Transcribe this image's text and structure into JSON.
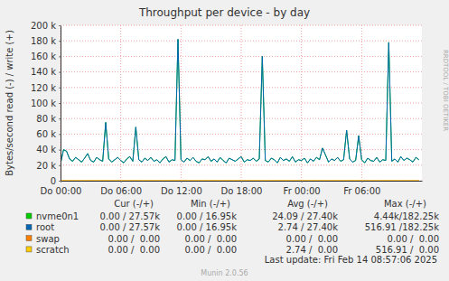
{
  "chart_data": {
    "type": "line",
    "title": "Throughput per device - by day",
    "y_label": "Bytes/second read (-) / write (+)",
    "x": [
      0,
      0.3,
      0.6,
      0.9,
      1.2,
      1.5,
      1.8,
      2.1,
      2.4,
      2.7,
      3,
      3.3,
      3.6,
      3.9,
      4.2,
      4.5,
      4.8,
      5.1,
      5.4,
      5.7,
      6,
      6.3,
      6.6,
      6.9,
      7.2,
      7.5,
      7.8,
      8.1,
      8.4,
      8.7,
      9,
      9.3,
      9.6,
      9.9,
      10.2,
      10.5,
      10.8,
      11.1,
      11.4,
      11.7,
      12,
      12.3,
      12.6,
      12.9,
      13.2,
      13.5,
      13.8,
      14.1,
      14.4,
      14.7,
      15,
      15.3,
      15.6,
      15.9,
      16.2,
      16.5,
      16.8,
      17.1,
      17.4,
      17.7,
      18,
      18.3,
      18.6,
      18.9,
      19.2,
      19.5,
      19.8,
      20.1,
      20.4,
      20.7,
      21,
      21.3,
      21.6,
      21.9,
      22.2,
      22.5,
      22.8,
      23.1,
      23.4,
      23.7,
      24,
      24.3,
      24.6,
      24.9,
      25.2,
      25.5,
      25.8,
      26.1,
      26.4,
      26.7,
      27,
      27.3,
      27.6,
      27.9,
      28.2,
      28.5,
      28.8,
      29.1,
      29.4,
      29.7,
      30,
      30.3,
      30.6,
      30.9,
      31.2,
      31.5,
      31.8,
      32.1,
      32.4,
      32.7,
      33,
      33.3,
      33.6,
      33.9,
      34.2,
      34.5,
      34.8,
      35.1,
      35.4,
      35.7
    ],
    "xlim": [
      0,
      36
    ],
    "xticks": [
      {
        "value": 0,
        "label": "Do 00:00"
      },
      {
        "value": 6,
        "label": "Do 06:00"
      },
      {
        "value": 12,
        "label": "Do 12:00"
      },
      {
        "value": 18,
        "label": "Do 18:00"
      },
      {
        "value": 24,
        "label": "Fr 00:00"
      },
      {
        "value": 30,
        "label": "Fr 06:00"
      }
    ],
    "ylim": [
      0,
      200000
    ],
    "yticks": [
      0,
      {
        "value": 20000,
        "label": "20 k"
      },
      {
        "value": 40000,
        "label": "40 k"
      },
      {
        "value": 60000,
        "label": "60 k"
      },
      {
        "value": 80000,
        "label": "80 k"
      },
      {
        "value": 100000,
        "label": "100 k"
      },
      {
        "value": 120000,
        "label": "120 k"
      },
      {
        "value": 140000,
        "label": "140 k"
      },
      {
        "value": 160000,
        "label": "160 k"
      },
      {
        "value": 180000,
        "label": "180 k"
      },
      {
        "value": 200000,
        "label": "200 k"
      }
    ],
    "grid": true,
    "columns": [
      "Cur (-/+)",
      "Min (-/+)",
      "Avg (-/+)",
      "Max (-/+)"
    ],
    "series": [
      {
        "name": "nvme0n1",
        "color": "#00cc00",
        "cur": "0.00 / 27.57k",
        "min": "0.00 / 16.95k",
        "avg": "24.09 / 27.40k",
        "max": "4.44k/182.25k",
        "values": [
          22000,
          40000,
          38000,
          28000,
          25000,
          30000,
          27000,
          24000,
          29000,
          35000,
          26000,
          24000,
          30000,
          27000,
          25000,
          75000,
          28000,
          24000,
          27000,
          30000,
          26000,
          23000,
          28000,
          31000,
          25000,
          69000,
          27000,
          24000,
          29000,
          26000,
          30000,
          25000,
          27000,
          23000,
          28000,
          31000,
          24000,
          27000,
          26000,
          182000,
          27000,
          24000,
          29000,
          26000,
          30000,
          25000,
          23000,
          28000,
          27000,
          31000,
          25000,
          28000,
          24000,
          30000,
          26000,
          23000,
          29000,
          27000,
          25000,
          28000,
          31000,
          24000,
          27000,
          26000,
          29000,
          25000,
          28000,
          160000,
          26000,
          24000,
          29000,
          27000,
          23000,
          30000,
          26000,
          28000,
          25000,
          31000,
          24000,
          27000,
          26000,
          29000,
          23000,
          28000,
          25000,
          30000,
          27000,
          42000,
          33000,
          24000,
          28000,
          26000,
          30000,
          25000,
          27000,
          65000,
          28000,
          24000,
          26000,
          58000,
          27000,
          23000,
          29000,
          26000,
          25000,
          30000,
          24000,
          27000,
          26000,
          178000,
          25000,
          28000,
          24000,
          31000,
          26000,
          29000,
          27000,
          24000,
          30000,
          27000
        ]
      },
      {
        "name": "root",
        "color": "#0066b3",
        "cur": "0.00 / 27.57k",
        "min": "0.00 / 16.95k",
        "avg": "2.74 / 27.40k",
        "max": "516.91 /182.25k",
        "values": [
          22000,
          40000,
          38000,
          28000,
          25000,
          30000,
          27000,
          24000,
          29000,
          35000,
          26000,
          24000,
          30000,
          27000,
          25000,
          75000,
          28000,
          24000,
          27000,
          30000,
          26000,
          23000,
          28000,
          31000,
          25000,
          69000,
          27000,
          24000,
          29000,
          26000,
          30000,
          25000,
          27000,
          23000,
          28000,
          31000,
          24000,
          27000,
          26000,
          182000,
          27000,
          24000,
          29000,
          26000,
          30000,
          25000,
          23000,
          28000,
          27000,
          31000,
          25000,
          28000,
          24000,
          30000,
          26000,
          23000,
          29000,
          27000,
          25000,
          28000,
          31000,
          24000,
          27000,
          26000,
          29000,
          25000,
          28000,
          160000,
          26000,
          24000,
          29000,
          27000,
          23000,
          30000,
          26000,
          28000,
          25000,
          31000,
          24000,
          27000,
          26000,
          29000,
          23000,
          28000,
          25000,
          30000,
          27000,
          42000,
          33000,
          24000,
          28000,
          26000,
          30000,
          25000,
          27000,
          65000,
          28000,
          24000,
          26000,
          58000,
          27000,
          23000,
          29000,
          26000,
          25000,
          30000,
          24000,
          27000,
          26000,
          178000,
          25000,
          28000,
          24000,
          31000,
          26000,
          29000,
          27000,
          24000,
          30000,
          27000
        ]
      },
      {
        "name": "swap",
        "color": "#ff8000",
        "cur": "0.00 /  0.00",
        "min": "0.00 /  0.00",
        "avg": "0.00 /  0.00",
        "max": "0.00 /  0.00",
        "values": [
          0,
          0,
          0,
          0,
          0,
          0,
          0,
          0,
          0,
          0,
          0,
          0,
          0,
          0,
          0,
          0,
          0,
          0,
          0,
          0,
          0,
          0,
          0,
          0,
          0,
          0,
          0,
          0,
          0,
          0,
          0,
          0,
          0,
          0,
          0,
          0,
          0,
          0,
          0,
          0,
          0,
          0,
          0,
          0,
          0,
          0,
          0,
          0,
          0,
          0,
          0,
          0,
          0,
          0,
          0,
          0,
          0,
          0,
          0,
          0,
          0,
          0,
          0,
          0,
          0,
          0,
          0,
          0,
          0,
          0,
          0,
          0,
          0,
          0,
          0,
          0,
          0,
          0,
          0,
          0,
          0,
          0,
          0,
          0,
          0,
          0,
          0,
          0,
          0,
          0,
          0,
          0,
          0,
          0,
          0,
          0,
          0,
          0,
          0,
          0,
          0,
          0,
          0,
          0,
          0,
          0,
          0,
          0,
          0,
          0,
          0,
          0,
          0,
          0,
          0,
          0,
          0,
          0,
          0,
          0
        ]
      },
      {
        "name": "scratch",
        "color": "#ffcc00",
        "cur": "0.00 /  0.00",
        "min": "0.00 /  0.00",
        "avg": "2.74 /  0.00",
        "max": "516.91 /  0.00",
        "values": [
          0,
          0,
          0,
          0,
          0,
          0,
          0,
          0,
          0,
          0,
          0,
          0,
          0,
          0,
          0,
          0,
          0,
          0,
          0,
          0,
          0,
          0,
          0,
          0,
          0,
          0,
          0,
          0,
          0,
          0,
          0,
          0,
          0,
          0,
          0,
          0,
          0,
          0,
          0,
          0,
          0,
          0,
          0,
          0,
          0,
          0,
          0,
          0,
          0,
          0,
          0,
          0,
          0,
          0,
          0,
          0,
          0,
          0,
          0,
          0,
          0,
          0,
          0,
          0,
          0,
          0,
          0,
          0,
          0,
          0,
          0,
          0,
          0,
          0,
          0,
          0,
          0,
          0,
          0,
          0,
          0,
          0,
          0,
          0,
          0,
          0,
          0,
          0,
          0,
          0,
          0,
          0,
          0,
          0,
          0,
          0,
          0,
          0,
          0,
          0,
          0,
          0,
          0,
          0,
          0,
          0,
          0,
          0,
          0,
          0,
          0,
          0,
          0,
          0,
          0,
          0,
          0,
          0,
          0,
          0
        ]
      }
    ],
    "footer": "Last update: Fri Feb 14 08:57:06 2025",
    "version": "Munin 2.0.56",
    "watermark": "RRDTOOL / TOBI OETIKER"
  }
}
